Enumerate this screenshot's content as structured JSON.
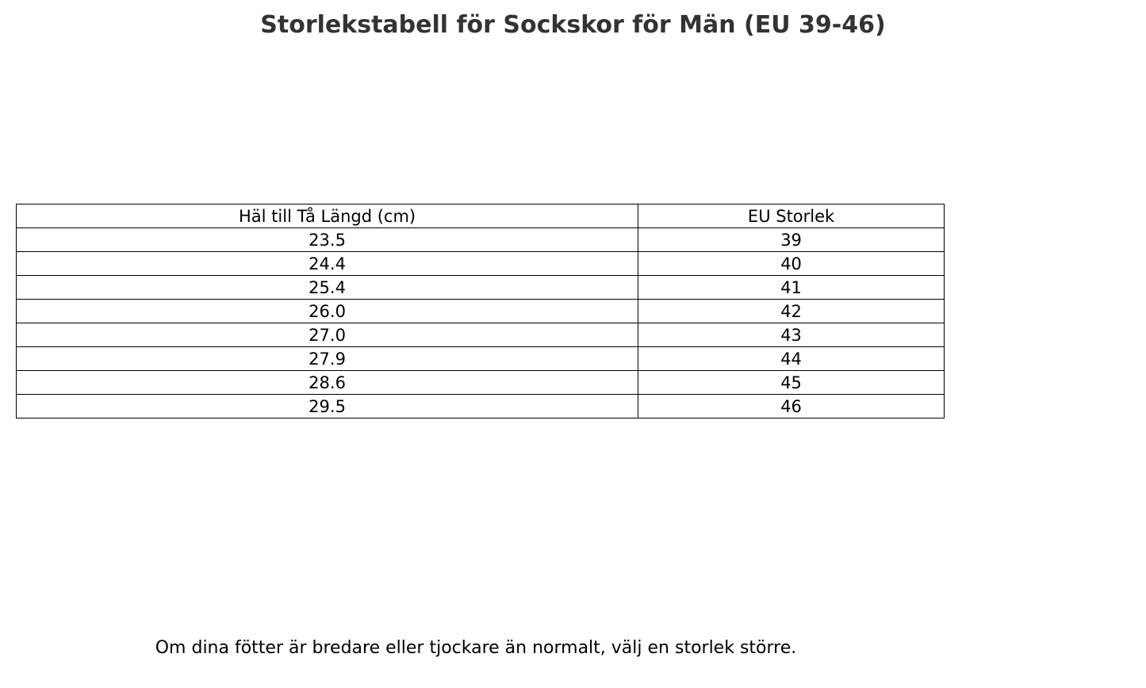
{
  "title": "Storlekstabell för Sockskor för Män (EU 39-46)",
  "table": {
    "type": "table",
    "columns": [
      "Häl till Tå Längd (cm)",
      "EU Storlek"
    ],
    "rows": [
      [
        "23.5",
        "39"
      ],
      [
        "24.4",
        "40"
      ],
      [
        "25.4",
        "41"
      ],
      [
        "26.0",
        "42"
      ],
      [
        "27.0",
        "43"
      ],
      [
        "27.9",
        "44"
      ],
      [
        "28.6",
        "45"
      ],
      [
        "29.5",
        "46"
      ]
    ],
    "border_color": "#000000",
    "background_color": "#ffffff",
    "text_color": "#000000",
    "header_fontsize": 21,
    "cell_fontsize": 21,
    "column_widths_pct": [
      50,
      50
    ],
    "text_align": "center"
  },
  "footer_note": "Om dina fötter är bredare eller tjockare än normalt, välj en storlek större.",
  "colors": {
    "background": "#ffffff",
    "title_text": "#333333",
    "body_text": "#000000",
    "border": "#000000"
  },
  "typography": {
    "title_fontsize": 30,
    "title_weight": "bold",
    "body_fontsize": 22,
    "font_family": "DejaVu Sans"
  }
}
